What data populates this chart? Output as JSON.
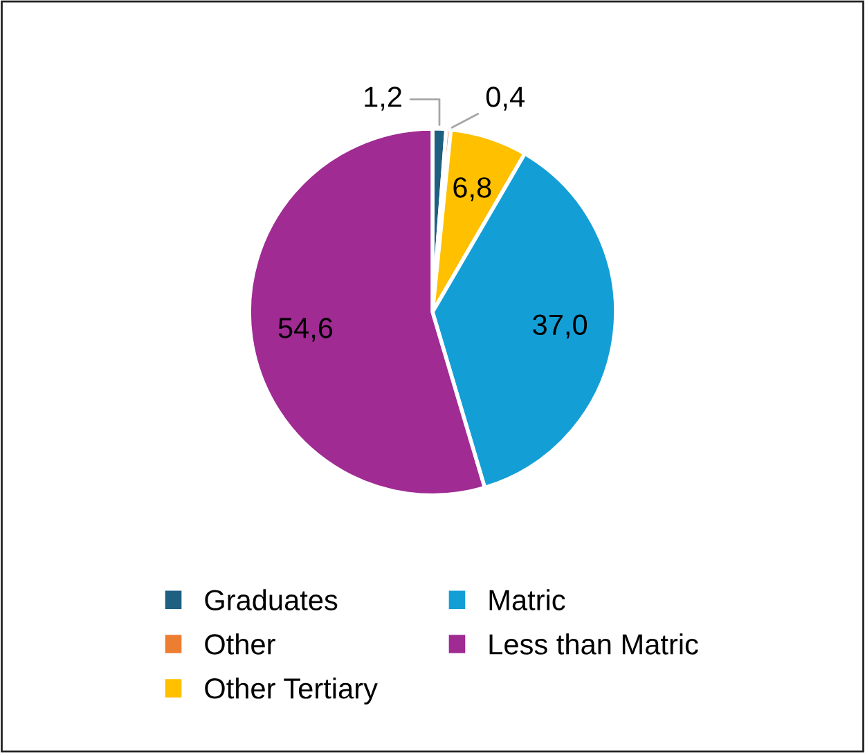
{
  "chart_data": {
    "type": "pie",
    "categories": [
      "Graduates",
      "Other",
      "Other Tertiary",
      "Matric",
      "Less than Matric"
    ],
    "values": [
      1.2,
      0.4,
      6.8,
      37.0,
      54.6
    ],
    "value_labels": [
      "1,2",
      "0,4",
      "6,8",
      "37,0",
      "54,6"
    ],
    "colors": [
      "#1f5f80",
      "#ed7d31",
      "#ffc000",
      "#139fd6",
      "#a02b93"
    ],
    "legend": "bottom"
  }
}
